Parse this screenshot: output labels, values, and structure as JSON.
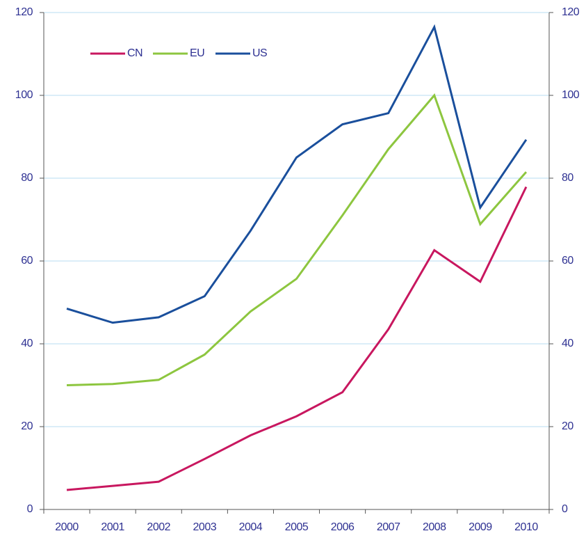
{
  "chart_data": {
    "type": "line",
    "categories": [
      "2000",
      "2001",
      "2002",
      "2003",
      "2004",
      "2005",
      "2006",
      "2007",
      "2008",
      "2009",
      "2010"
    ],
    "series": [
      {
        "name": "CN",
        "color": "#c8175f",
        "values": [
          4.7,
          5.7,
          6.7,
          12.2,
          17.9,
          22.5,
          28.3,
          43.5,
          62.6,
          55,
          77.9
        ]
      },
      {
        "name": "EU",
        "color": "#8dc63f",
        "values": [
          30,
          30.3,
          31.3,
          37.4,
          47.8,
          55.7,
          71,
          87,
          100,
          68.9,
          81.5
        ]
      },
      {
        "name": "US",
        "color": "#1a4f9c",
        "values": [
          48.5,
          45.1,
          46.4,
          51.5,
          67.3,
          85,
          93,
          95.7,
          116.5,
          72.9,
          89.3
        ]
      }
    ],
    "ylim": [
      0,
      120
    ],
    "yticks": [
      0,
      20,
      40,
      60,
      80,
      100,
      120
    ],
    "y2lim": [
      0,
      120
    ],
    "y2ticks": [
      0,
      20,
      40,
      60,
      80,
      100,
      120
    ],
    "grid": true,
    "legend": "upper left"
  }
}
